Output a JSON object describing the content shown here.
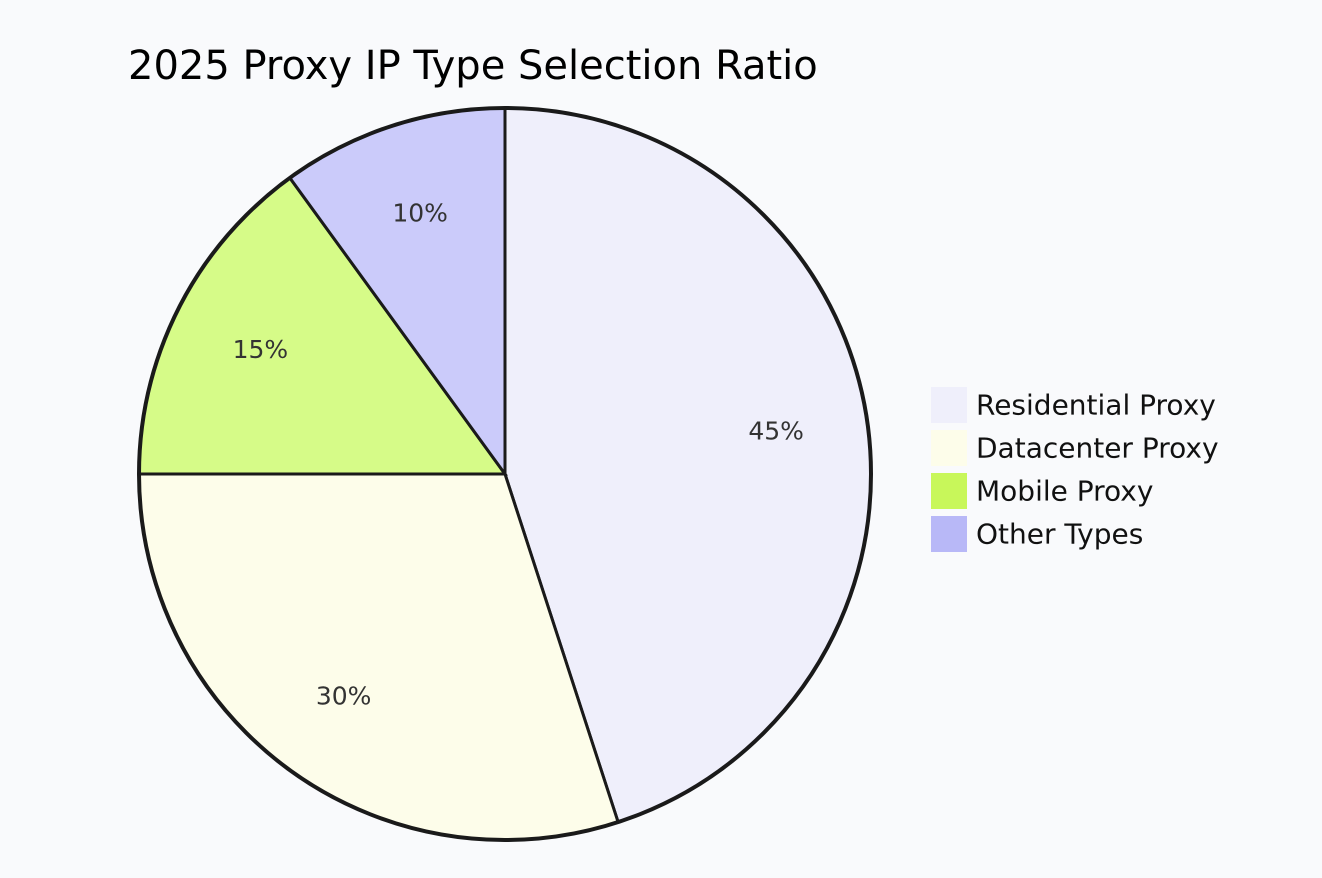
{
  "chart_data": {
    "type": "pie",
    "title": "2025 Proxy IP Type Selection Ratio",
    "categories": [
      "Residential Proxy",
      "Datacenter Proxy",
      "Mobile Proxy",
      "Other Types"
    ],
    "values": [
      45,
      30,
      15,
      10
    ],
    "labels": [
      "45%",
      "30%",
      "15%",
      "10%"
    ],
    "colors": [
      "#efeffb",
      "#fdfdea",
      "#d6fb88",
      "#cbcbfa"
    ],
    "legend_colors": [
      "#efeffb",
      "#fdfdea",
      "#c8f75a",
      "#b8b8f7"
    ],
    "legend": "right",
    "start_angle": "top-clockwise"
  }
}
